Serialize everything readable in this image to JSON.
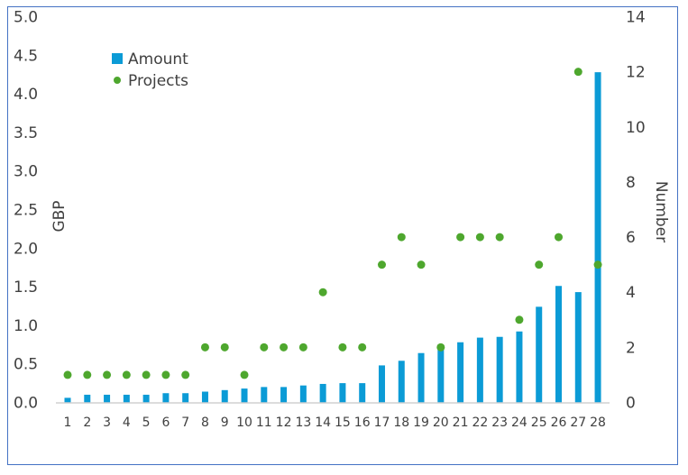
{
  "chart_data": {
    "type": "bar+scatter",
    "categories": [
      "1",
      "2",
      "3",
      "4",
      "5",
      "6",
      "7",
      "8",
      "9",
      "10",
      "11",
      "12",
      "13",
      "14",
      "15",
      "16",
      "17",
      "18",
      "19",
      "20",
      "21",
      "22",
      "23",
      "24",
      "25",
      "26",
      "27",
      "28"
    ],
    "series": [
      {
        "name": "Amount",
        "type": "bar",
        "axis": "left",
        "color": "#0b9bd6",
        "values": [
          0.06,
          0.1,
          0.1,
          0.1,
          0.1,
          0.12,
          0.12,
          0.14,
          0.16,
          0.18,
          0.2,
          0.2,
          0.22,
          0.24,
          0.25,
          0.25,
          0.48,
          0.54,
          0.64,
          0.7,
          0.78,
          0.84,
          0.85,
          0.92,
          1.24,
          1.51,
          1.43,
          4.28
        ]
      },
      {
        "name": "Projects",
        "type": "scatter",
        "axis": "right",
        "color": "#4ea72e",
        "values": [
          1,
          1,
          1,
          1,
          1,
          1,
          1,
          2,
          2,
          1,
          2,
          2,
          2,
          4,
          2,
          2,
          5,
          6,
          5,
          2,
          6,
          6,
          6,
          3,
          5,
          6,
          12,
          5
        ]
      }
    ],
    "ylabel": "GBP",
    "y2label": "Number",
    "ylim": [
      0,
      5.0
    ],
    "y2lim": [
      0,
      14
    ],
    "yticks": [
      "0.0",
      "0.5",
      "1.0",
      "1.5",
      "2.0",
      "2.5",
      "3.0",
      "3.5",
      "4.0",
      "4.5",
      "5.0"
    ],
    "y2ticks": [
      "0",
      "2",
      "4",
      "6",
      "8",
      "10",
      "12",
      "14"
    ],
    "grid": false,
    "legend": "top-left",
    "frame_color": "#4472c4"
  }
}
